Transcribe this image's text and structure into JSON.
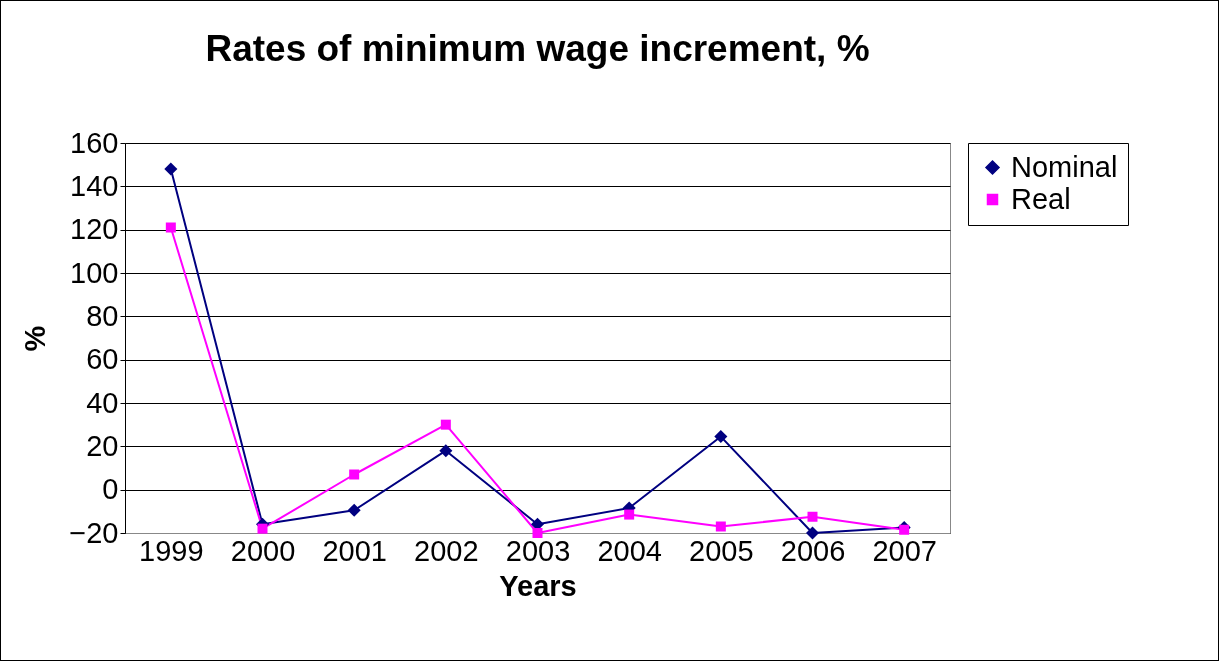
{
  "chart_data": {
    "type": "line",
    "title": "Rates of minimum wage increment, %",
    "xlabel": "Years",
    "ylabel": "%",
    "categories": [
      "1999",
      "2000",
      "2001",
      "2002",
      "2003",
      "2004",
      "2005",
      "2006",
      "2007"
    ],
    "series": [
      {
        "name": "Nominal",
        "color": "#000080",
        "marker": "diamond",
        "values": [
          148,
          -16,
          -9.5,
          18,
          -16,
          -8.5,
          24.5,
          -20,
          -17.5
        ]
      },
      {
        "name": "Real",
        "color": "#ff00ff",
        "marker": "square",
        "values": [
          121,
          -18,
          7,
          30,
          -20,
          -11.5,
          -17,
          -12.5,
          -18.5
        ]
      }
    ],
    "ylim": [
      -20,
      160
    ],
    "yticks": [
      -20,
      0,
      20,
      40,
      60,
      80,
      100,
      120,
      140,
      160
    ],
    "grid": "y",
    "legend": "right"
  }
}
